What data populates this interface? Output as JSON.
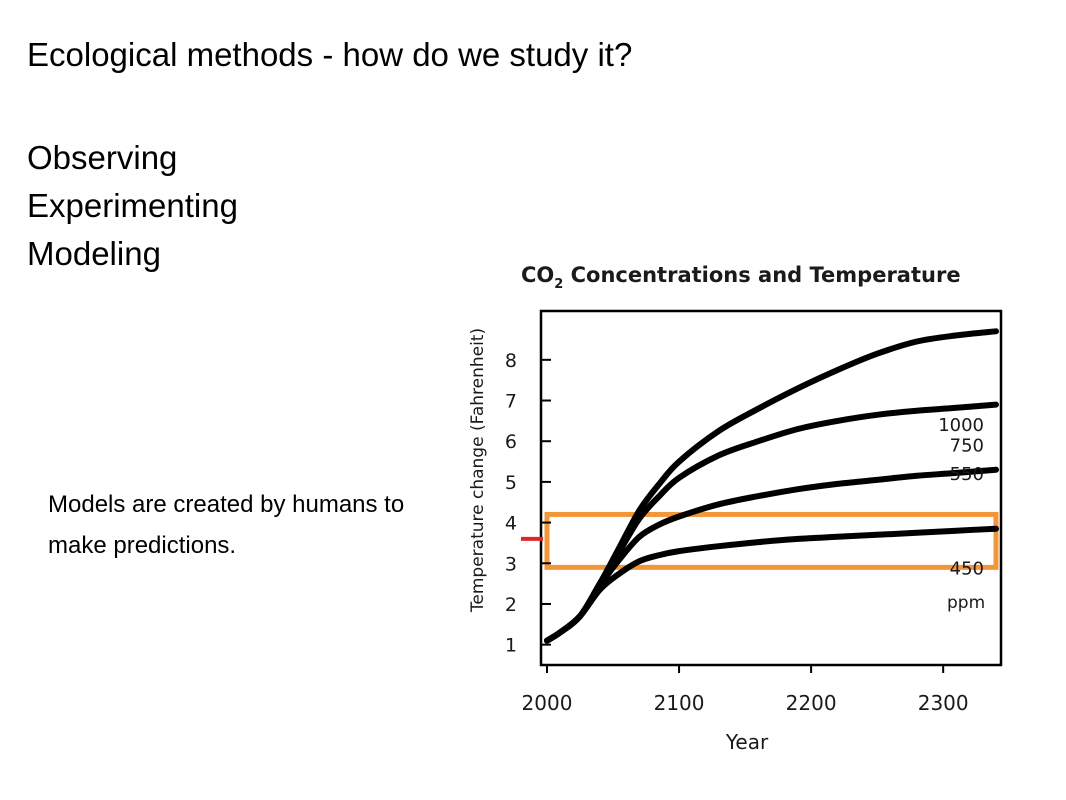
{
  "slide": {
    "title": "Ecological methods - how do we study it?",
    "bullets": [
      "Observing",
      "Experimenting",
      "Modeling"
    ],
    "note": "Models are created by humans to make predictions."
  },
  "chart_data": {
    "type": "line",
    "title_prefix": "CO",
    "title_subscript": "2",
    "title_suffix": " Concentrations and Temperature",
    "xlabel": "Year",
    "ylabel": "Temperature change (Fahrenheit)",
    "xlim": [
      2000,
      2340
    ],
    "ylim": [
      0.5,
      9.2
    ],
    "xticks": [
      2000,
      2100,
      2200,
      2300
    ],
    "yticks": [
      1,
      2,
      3,
      4,
      5,
      6,
      7,
      8
    ],
    "grid": false,
    "series_label_unit": "ppm",
    "series": [
      {
        "name": "1000",
        "color": "#000000",
        "x": [
          2000,
          2010,
          2025,
          2040,
          2055,
          2070,
          2085,
          2100,
          2130,
          2160,
          2190,
          2220,
          2250,
          2280,
          2310,
          2340
        ],
        "y": [
          1.1,
          1.3,
          1.7,
          2.5,
          3.4,
          4.3,
          4.95,
          5.5,
          6.25,
          6.8,
          7.3,
          7.75,
          8.15,
          8.45,
          8.6,
          8.7
        ]
      },
      {
        "name": "750",
        "color": "#000000",
        "x": [
          2000,
          2010,
          2025,
          2040,
          2055,
          2070,
          2085,
          2100,
          2130,
          2160,
          2190,
          2220,
          2250,
          2280,
          2310,
          2340
        ],
        "y": [
          1.1,
          1.3,
          1.7,
          2.5,
          3.3,
          4.1,
          4.65,
          5.1,
          5.65,
          6.0,
          6.3,
          6.5,
          6.65,
          6.75,
          6.82,
          6.9
        ]
      },
      {
        "name": "550",
        "color": "#000000",
        "x": [
          2000,
          2010,
          2025,
          2040,
          2055,
          2070,
          2085,
          2100,
          2130,
          2160,
          2190,
          2220,
          2250,
          2280,
          2310,
          2340
        ],
        "y": [
          1.1,
          1.3,
          1.7,
          2.45,
          3.1,
          3.65,
          3.95,
          4.15,
          4.45,
          4.65,
          4.82,
          4.95,
          5.05,
          5.15,
          5.22,
          5.3
        ]
      },
      {
        "name": "450",
        "color": "#000000",
        "x": [
          2000,
          2010,
          2025,
          2040,
          2055,
          2070,
          2085,
          2100,
          2130,
          2160,
          2190,
          2220,
          2250,
          2280,
          2310,
          2340
        ],
        "y": [
          1.1,
          1.3,
          1.7,
          2.35,
          2.75,
          3.05,
          3.2,
          3.3,
          3.42,
          3.52,
          3.6,
          3.65,
          3.7,
          3.75,
          3.8,
          3.85
        ]
      }
    ],
    "highlight_band": {
      "x": [
        2000,
        2340
      ],
      "y": [
        2.9,
        4.2
      ],
      "color": "#f2963a"
    },
    "marker": {
      "y": 3.6,
      "color": "#e0262b"
    }
  }
}
